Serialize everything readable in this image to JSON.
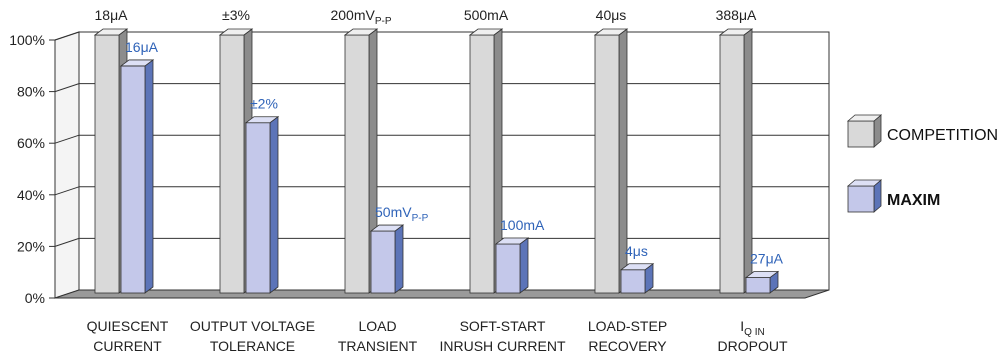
{
  "chart_data": {
    "type": "bar",
    "ylim": [
      0,
      100
    ],
    "y_ticks": [
      "0%",
      "20%",
      "40%",
      "60%",
      "80%",
      "100%"
    ],
    "y_tick_values": [
      0,
      20,
      40,
      60,
      80,
      100
    ],
    "categories": [
      [
        "QUIESCENT",
        "CURRENT"
      ],
      [
        "OUTPUT VOLTAGE",
        "TOLERANCE"
      ],
      [
        "LOAD",
        "TRANSIENT"
      ],
      [
        "SOFT-START",
        "INRUSH CURRENT"
      ],
      [
        "LOAD-STEP",
        "RECOVERY"
      ],
      [
        "I_Q IN",
        "DROPOUT"
      ]
    ],
    "series": [
      {
        "name": "COMPETITION",
        "values": [
          100,
          100,
          100,
          100,
          100,
          100
        ],
        "labels": [
          "18μA",
          "±3%",
          "200mV_P-P",
          "500mA",
          "40μs",
          "388μA"
        ],
        "color": "#d9d9d9",
        "side_color": "#8c8c8c",
        "top_color": "#efefef"
      },
      {
        "name": "MAXIM",
        "values": [
          88,
          66,
          24,
          19,
          9,
          6
        ],
        "labels": [
          "16μA",
          "±2%",
          "50mV_P-P",
          "100mA",
          "4μs",
          "27μA"
        ],
        "color": "#c4c8ea",
        "side_color": "#5c74b8",
        "top_color": "#dde0f5"
      }
    ],
    "legend": {
      "position": "right",
      "items": [
        "COMPETITION",
        "MAXIM"
      ]
    },
    "grid": true
  }
}
